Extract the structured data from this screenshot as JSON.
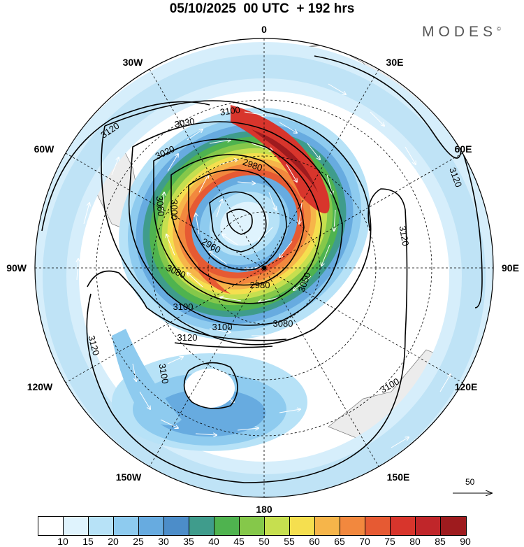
{
  "title": "05/10/2025  00 UTC  + 192 hrs",
  "brand": {
    "name": "MODES",
    "mark": "©"
  },
  "map": {
    "projection": "polar-stereographic",
    "hemisphere": "south",
    "longitude_labels": [
      "0",
      "30E",
      "60E",
      "90E",
      "120E",
      "150E",
      "180",
      "150W",
      "120W",
      "90W",
      "60W",
      "30W"
    ],
    "height_contours_gpm": [
      "3100",
      "3030",
      "3020",
      "2980",
      "3060",
      "3000",
      "2960",
      "3080",
      "2980",
      "3050",
      "3080",
      "3100",
      "3120",
      "3120",
      "3100",
      "3120",
      "3100",
      "3120",
      "3120",
      "3100"
    ],
    "reference_vector": {
      "value": "50",
      "icon": "arrow-right-icon"
    }
  },
  "colorbar": {
    "ticks": [
      "10",
      "15",
      "20",
      "25",
      "30",
      "35",
      "40",
      "45",
      "50",
      "55",
      "60",
      "65",
      "70",
      "75",
      "80",
      "85",
      "90"
    ],
    "colors": [
      "#ffffff",
      "#dff3fd",
      "#b7e2f7",
      "#8ecbef",
      "#67abe0",
      "#4c8dc9",
      "#3f9c8c",
      "#4fb34f",
      "#85c84a",
      "#c6df4f",
      "#f5df4f",
      "#f6b54a",
      "#f2883e",
      "#e65a33",
      "#d8352c",
      "#c0262a",
      "#9e1b1e"
    ]
  }
}
